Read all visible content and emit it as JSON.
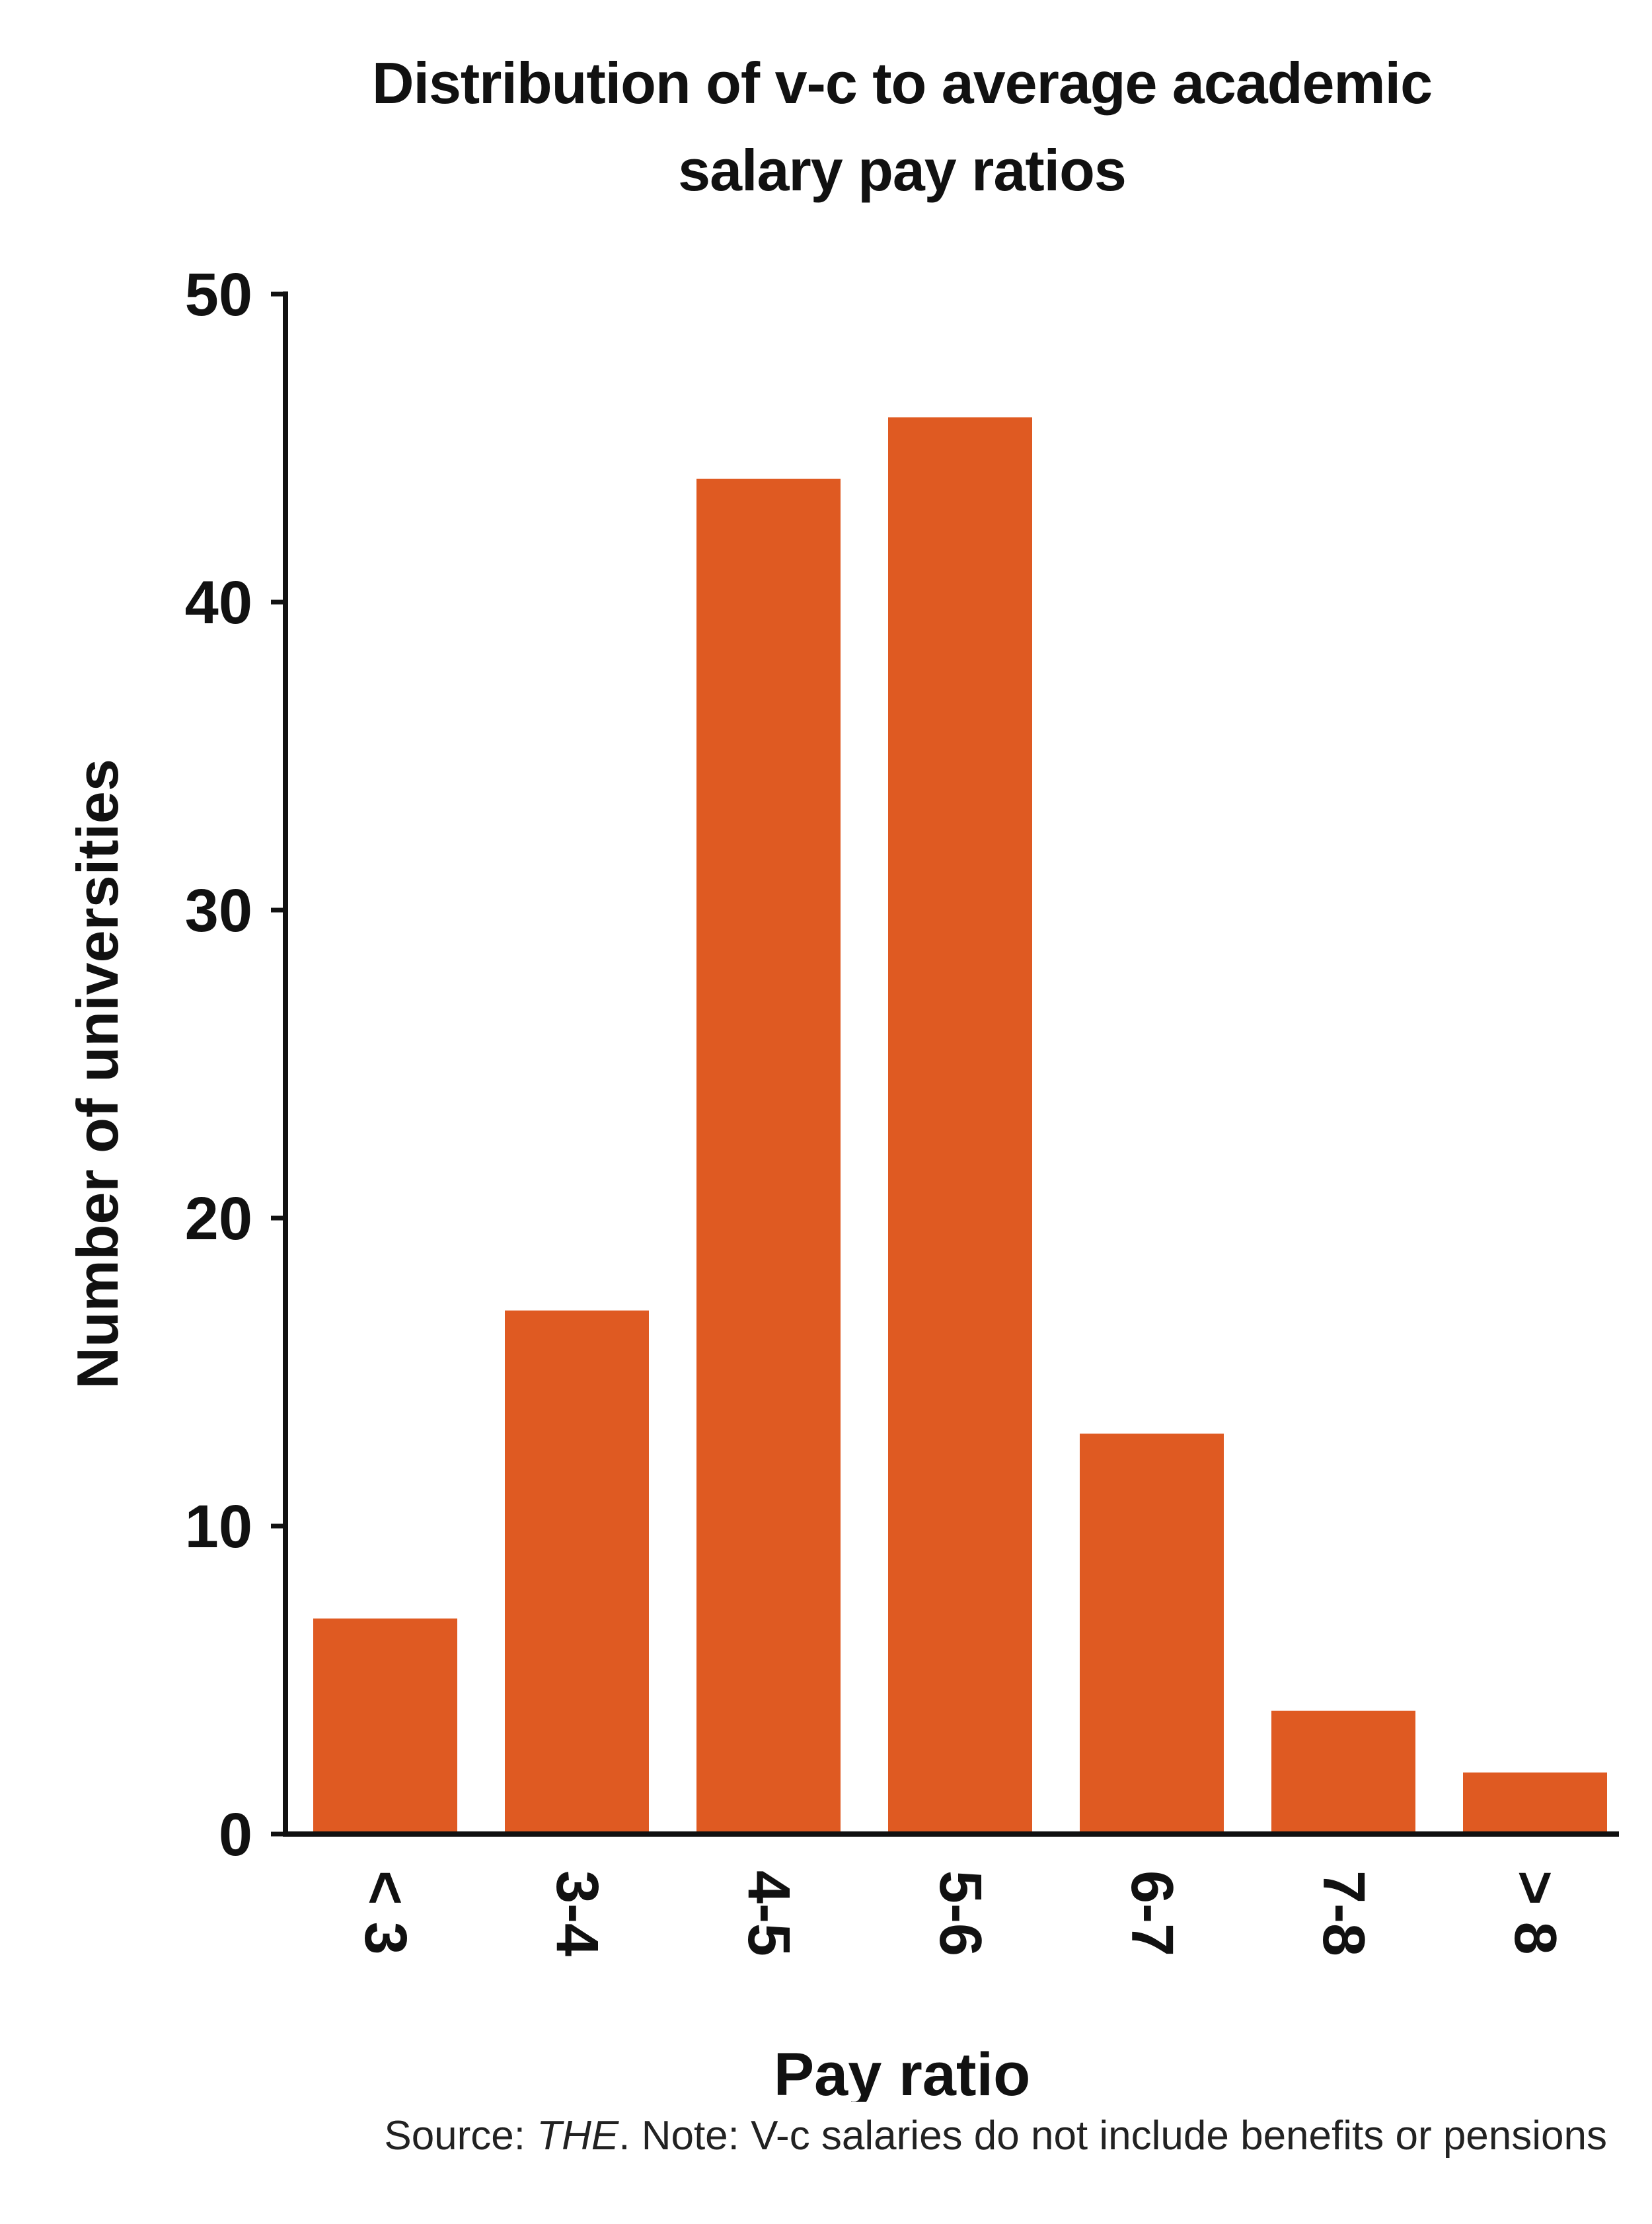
{
  "chart_data": {
    "type": "bar",
    "title_lines": [
      "Distribution of v-c to average academic",
      "salary pay ratios"
    ],
    "xlabel": "Pay ratio",
    "ylabel": "Number of universities",
    "categories": [
      "< 3",
      "3-4",
      "4-5",
      "5-6",
      "6-7",
      "7-8",
      "> 8"
    ],
    "values": [
      7,
      17,
      44,
      46,
      13,
      4,
      2
    ],
    "ylim": [
      0,
      50
    ],
    "yticks": [
      0,
      10,
      20,
      30,
      40,
      50
    ],
    "grid": false,
    "bar_color": "#DF5A22",
    "axis_color": "#111111"
  },
  "source": {
    "prefix": "Source: ",
    "publication": "THE",
    "note": ". Note: V-c salaries do not include benefits or pensions"
  }
}
